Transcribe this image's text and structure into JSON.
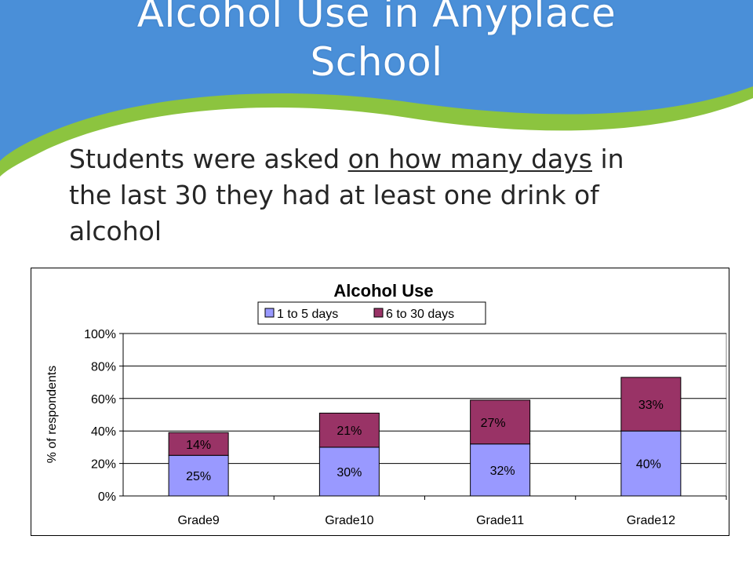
{
  "slide": {
    "title_line1": "Alcohol Use in Anyplace",
    "title_line2": "School",
    "subtitle_pre": "Students were asked ",
    "subtitle_underlined": "on how many days",
    "subtitle_post": " in the last 30 they had at least one drink of alcohol"
  },
  "colors": {
    "wave_blue": "#4a8fd8",
    "wave_green": "#8cc43f",
    "series1": "#9999ff",
    "series2": "#993366"
  },
  "chart_data": {
    "type": "bar",
    "stacked": true,
    "title": "Alcohol Use",
    "ylabel": "% of respondents",
    "xlabel": "",
    "categories": [
      "Grade9",
      "Grade10",
      "Grade11",
      "Grade12"
    ],
    "series": [
      {
        "name": "1 to 5 days",
        "values": [
          25,
          30,
          32,
          40
        ],
        "labels": [
          "25%",
          "30%",
          "32%",
          "40%"
        ],
        "color": "#9999ff"
      },
      {
        "name": "6 to 30 days",
        "values": [
          14,
          21,
          27,
          33
        ],
        "labels": [
          "14%",
          "21%",
          "27%",
          "33%"
        ],
        "color": "#993366"
      }
    ],
    "ylim": [
      0,
      100
    ],
    "yticks": [
      "0%",
      "20%",
      "40%",
      "60%",
      "80%",
      "100%"
    ],
    "grid": true,
    "legend": "top"
  }
}
